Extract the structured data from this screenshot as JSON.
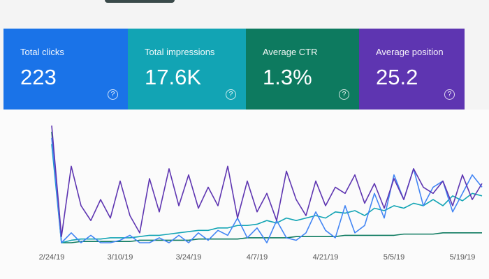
{
  "cards": [
    {
      "label": "Total clicks",
      "value": "223"
    },
    {
      "label": "Total impressions",
      "value": "17.6K"
    },
    {
      "label": "Average CTR",
      "value": "1.3%"
    },
    {
      "label": "Average position",
      "value": "25.2"
    }
  ],
  "chart": {
    "type": "line",
    "x_tick_labels": [
      "2/24/19",
      "3/10/19",
      "3/24/19",
      "4/7/19",
      "4/21/19",
      "5/5/19",
      "5/19/19"
    ],
    "series": [
      {
        "color": "#5e35b1",
        "values": [
          95,
          5,
          62,
          30,
          18,
          35,
          20,
          50,
          22,
          8,
          52,
          25,
          60,
          30,
          55,
          28,
          45,
          30,
          62,
          20,
          50,
          25,
          40,
          18,
          58,
          35,
          22,
          50,
          30,
          45,
          40,
          55,
          32,
          48,
          28,
          52,
          35,
          60,
          45,
          40,
          50,
          30,
          55,
          35,
          48
        ]
      },
      {
        "color": "#4285f4",
        "values": [
          85,
          0,
          8,
          0,
          6,
          0,
          0,
          2,
          6,
          0,
          0,
          4,
          0,
          6,
          0,
          8,
          2,
          10,
          6,
          20,
          4,
          12,
          0,
          18,
          4,
          2,
          8,
          25,
          10,
          4,
          30,
          8,
          14,
          40,
          20,
          55,
          35,
          60,
          30,
          45,
          50,
          25,
          40,
          55,
          45
        ]
      },
      {
        "color": "#12a4b4",
        "values": [
          80,
          0,
          2,
          3,
          3,
          3,
          4,
          4,
          4,
          5,
          6,
          6,
          7,
          8,
          9,
          10,
          10,
          12,
          12,
          14,
          14,
          15,
          18,
          16,
          20,
          18,
          20,
          22,
          20,
          25,
          24,
          26,
          22,
          28,
          26,
          30,
          28,
          32,
          30,
          35,
          30,
          38,
          34,
          40,
          38
        ]
      },
      {
        "color": "#0d7a5f",
        "values": [
          90,
          0,
          0,
          1,
          1,
          1,
          1,
          1,
          1,
          2,
          2,
          2,
          2,
          2,
          2,
          3,
          3,
          3,
          3,
          3,
          4,
          4,
          4,
          4,
          4,
          5,
          5,
          5,
          5,
          5,
          6,
          6,
          6,
          6,
          6,
          6,
          7,
          7,
          7,
          7,
          8,
          8,
          8,
          8,
          8
        ]
      }
    ]
  }
}
